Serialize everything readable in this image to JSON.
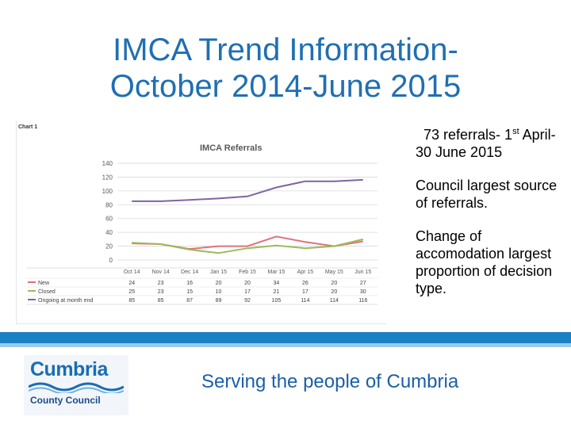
{
  "slide": {
    "title_line1": "IMCA Trend Information-",
    "title_line2": "October 2014-June 2015",
    "bullets": {
      "b1_prefix": "73 referrals- 1",
      "b1_sup": "st",
      "b1_suffix": " April- 30 June 2015",
      "b2": "Council largest source of referrals.",
      "b3": "Change of accomodation largest proportion of decision type."
    },
    "footer": "Serving the people of Cumbria",
    "logo": {
      "top": "Cumbria",
      "bottom": "County Council"
    }
  },
  "colors": {
    "new": "#e0727a",
    "closed": "#9bbb59",
    "ongoing": "#8064a2",
    "accent": "#1a80c4"
  },
  "chart_data": {
    "type": "line",
    "label": "Chart 1",
    "title": "IMCA Referrals",
    "categories": [
      "Oct 14",
      "Nov 14",
      "Dec 14",
      "Jan 15",
      "Feb 15",
      "Mar 15",
      "Apr 15",
      "May 15",
      "Jun 15"
    ],
    "ylim": [
      0,
      140
    ],
    "yticks": [
      0,
      20,
      40,
      60,
      80,
      100,
      120,
      140
    ],
    "series": [
      {
        "name": "New",
        "values": [
          24,
          23,
          16,
          20,
          20,
          34,
          26,
          20,
          27
        ]
      },
      {
        "name": "Closed",
        "values": [
          25,
          23,
          15,
          10,
          17,
          21,
          17,
          20,
          30
        ]
      },
      {
        "name": "Ongoing at month end",
        "values": [
          85,
          85,
          87,
          89,
          92,
          105,
          114,
          114,
          116
        ]
      }
    ]
  }
}
